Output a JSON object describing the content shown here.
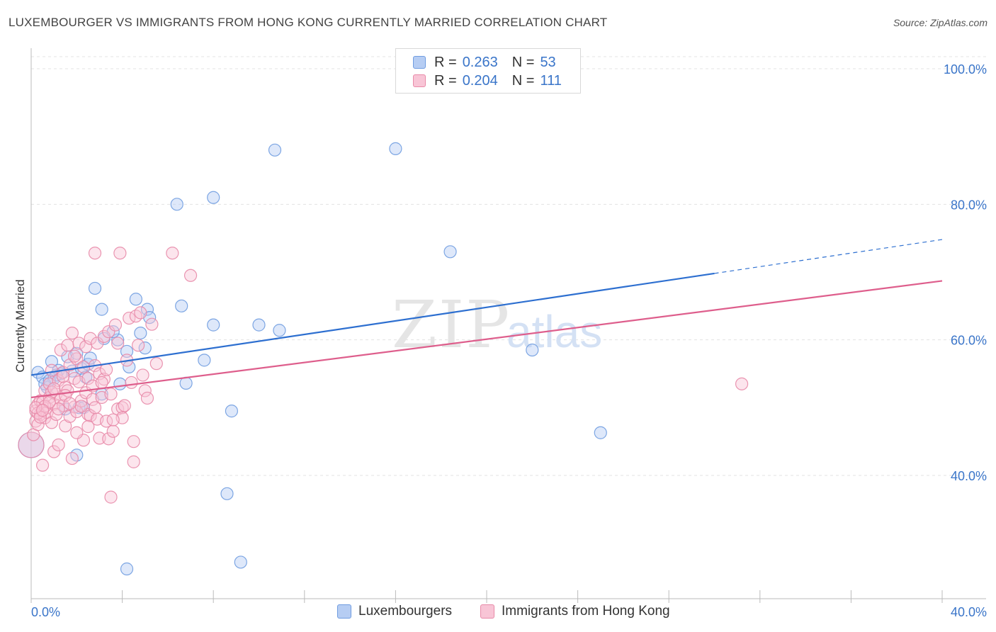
{
  "title": "LUXEMBOURGER VS IMMIGRANTS FROM HONG KONG CURRENTLY MARRIED CORRELATION CHART",
  "source": "Source: ZipAtlas.com",
  "watermark": {
    "zip": "ZIP",
    "atlas": "atlas"
  },
  "legend_top": [
    {
      "r_label": "R =",
      "r_value": "0.263",
      "n_label": "N =",
      "n_value": "53",
      "color": "#6f9ce0"
    },
    {
      "r_label": "R =",
      "r_value": "0.204",
      "n_label": "N =",
      "n_value": "111",
      "color": "#e88aa8"
    }
  ],
  "legend_bottom": [
    "Luxembourgers",
    "Immigrants from Hong Kong"
  ],
  "chart_data": {
    "type": "scatter",
    "title": "LUXEMBOURGER VS IMMIGRANTS FROM HONG KONG CURRENTLY MARRIED CORRELATION CHART",
    "xlabel": "",
    "ylabel": "Currently Married",
    "xlim": [
      0,
      40
    ],
    "ylim": [
      20,
      100
    ],
    "x_tick_labels": [
      "0.0%",
      "40.0%"
    ],
    "y_ticks": [
      40,
      60,
      80,
      100
    ],
    "y_tick_labels": [
      "40.0%",
      "60.0%",
      "80.0%",
      "100.0%"
    ],
    "grid": true,
    "legend_position": "top-center",
    "series": [
      {
        "name": "Luxembourgers",
        "color": "#6f9ce0",
        "fill": "#b6cdf3",
        "trend": {
          "x0": 0,
          "y0": 54.8,
          "x1": 30,
          "y1": 69.8,
          "dashed_to_x": 40,
          "dashed_to_y": 74.8,
          "color": "#2d6fd0"
        },
        "points": [
          [
            0.0,
            44.5
          ],
          [
            0.3,
            55.2
          ],
          [
            0.5,
            54.5
          ],
          [
            0.7,
            53.0
          ],
          [
            0.9,
            56.8
          ],
          [
            1.0,
            54.3
          ],
          [
            1.2,
            55.5
          ],
          [
            1.3,
            55.0
          ],
          [
            1.5,
            49.8
          ],
          [
            1.6,
            57.5
          ],
          [
            1.8,
            55.4
          ],
          [
            2.0,
            58.0
          ],
          [
            2.1,
            50.0
          ],
          [
            2.2,
            55.8
          ],
          [
            2.4,
            54.5
          ],
          [
            2.5,
            56.4
          ],
          [
            2.6,
            57.3
          ],
          [
            2.8,
            67.6
          ],
          [
            3.1,
            64.5
          ],
          [
            3.2,
            60.2
          ],
          [
            3.1,
            52.0
          ],
          [
            3.8,
            60.0
          ],
          [
            3.9,
            53.5
          ],
          [
            4.2,
            58.3
          ],
          [
            4.3,
            56.0
          ],
          [
            4.6,
            66.0
          ],
          [
            4.8,
            61.0
          ],
          [
            5.0,
            58.8
          ],
          [
            5.1,
            64.5
          ],
          [
            5.2,
            63.3
          ],
          [
            6.4,
            80.0
          ],
          [
            6.6,
            65.0
          ],
          [
            6.8,
            53.6
          ],
          [
            7.6,
            57.0
          ],
          [
            8.0,
            62.2
          ],
          [
            8.0,
            81.0
          ],
          [
            8.6,
            37.3
          ],
          [
            8.8,
            49.5
          ],
          [
            9.2,
            27.2
          ],
          [
            10.0,
            62.2
          ],
          [
            10.7,
            88.0
          ],
          [
            10.9,
            61.4
          ],
          [
            16.0,
            88.2
          ],
          [
            18.4,
            73.0
          ],
          [
            22.0,
            58.5
          ],
          [
            25.0,
            46.3
          ],
          [
            4.2,
            26.2
          ],
          [
            2.3,
            50.0
          ],
          [
            1.1,
            54.8
          ],
          [
            0.6,
            53.5
          ],
          [
            2.0,
            43.0
          ],
          [
            0.8,
            54.0
          ],
          [
            3.6,
            61.2
          ]
        ]
      },
      {
        "name": "Immigrants from Hong Kong",
        "color": "#e88aa8",
        "fill": "#f8c5d6",
        "trend": {
          "x0": 0,
          "y0": 51.5,
          "x1": 40,
          "y1": 68.7,
          "color": "#de5e8c"
        },
        "points": [
          [
            0.0,
            44.5
          ],
          [
            0.1,
            46.0
          ],
          [
            0.2,
            48.0
          ],
          [
            0.2,
            49.5
          ],
          [
            0.3,
            50.5
          ],
          [
            0.3,
            47.5
          ],
          [
            0.4,
            51.0
          ],
          [
            0.4,
            49.0
          ],
          [
            0.5,
            50.8
          ],
          [
            0.5,
            41.5
          ],
          [
            0.6,
            48.5
          ],
          [
            0.6,
            52.5
          ],
          [
            0.7,
            50.0
          ],
          [
            0.7,
            49.3
          ],
          [
            0.8,
            51.5
          ],
          [
            0.8,
            53.5
          ],
          [
            0.9,
            47.8
          ],
          [
            0.9,
            55.5
          ],
          [
            1.0,
            50.5
          ],
          [
            1.0,
            43.5
          ],
          [
            1.1,
            52.0
          ],
          [
            1.1,
            49.0
          ],
          [
            1.2,
            54.0
          ],
          [
            1.2,
            44.5
          ],
          [
            1.3,
            51.2
          ],
          [
            1.3,
            58.5
          ],
          [
            1.4,
            55.2
          ],
          [
            1.4,
            50.3
          ],
          [
            1.5,
            53.0
          ],
          [
            1.5,
            47.3
          ],
          [
            1.6,
            59.2
          ],
          [
            1.6,
            52.5
          ],
          [
            1.7,
            56.3
          ],
          [
            1.7,
            48.7
          ],
          [
            1.8,
            61.0
          ],
          [
            1.8,
            42.5
          ],
          [
            1.9,
            54.3
          ],
          [
            1.9,
            50.1
          ],
          [
            2.0,
            57.2
          ],
          [
            2.0,
            49.4
          ],
          [
            2.1,
            53.8
          ],
          [
            2.1,
            59.5
          ],
          [
            2.2,
            51.0
          ],
          [
            2.3,
            45.2
          ],
          [
            2.3,
            56.0
          ],
          [
            2.4,
            59.0
          ],
          [
            2.4,
            52.2
          ],
          [
            2.5,
            49.0
          ],
          [
            2.5,
            54.3
          ],
          [
            2.6,
            60.2
          ],
          [
            2.6,
            48.8
          ],
          [
            2.7,
            53.2
          ],
          [
            2.7,
            51.2
          ],
          [
            2.8,
            72.8
          ],
          [
            2.8,
            56.2
          ],
          [
            2.9,
            59.5
          ],
          [
            2.9,
            48.3
          ],
          [
            3.0,
            55.0
          ],
          [
            3.0,
            45.5
          ],
          [
            3.1,
            51.5
          ],
          [
            3.2,
            54.2
          ],
          [
            3.2,
            60.5
          ],
          [
            3.3,
            48.0
          ],
          [
            3.4,
            61.2
          ],
          [
            3.4,
            45.4
          ],
          [
            3.5,
            52.0
          ],
          [
            3.5,
            36.8
          ],
          [
            3.6,
            46.5
          ],
          [
            3.7,
            62.2
          ],
          [
            3.8,
            59.5
          ],
          [
            3.8,
            49.8
          ],
          [
            3.9,
            72.8
          ],
          [
            4.0,
            50.0
          ],
          [
            4.0,
            48.5
          ],
          [
            4.1,
            50.3
          ],
          [
            4.2,
            57.0
          ],
          [
            4.3,
            63.2
          ],
          [
            4.4,
            53.7
          ],
          [
            4.5,
            45.0
          ],
          [
            4.5,
            42.0
          ],
          [
            4.6,
            63.5
          ],
          [
            4.7,
            59.2
          ],
          [
            4.8,
            64.0
          ],
          [
            4.9,
            54.8
          ],
          [
            5.0,
            52.5
          ],
          [
            5.1,
            51.4
          ],
          [
            5.3,
            62.3
          ],
          [
            5.5,
            56.5
          ],
          [
            6.2,
            72.8
          ],
          [
            7.0,
            69.5
          ],
          [
            0.3,
            49.2
          ],
          [
            0.6,
            50.2
          ],
          [
            0.9,
            52.3
          ],
          [
            1.2,
            49.8
          ],
          [
            1.5,
            51.8
          ],
          [
            1.9,
            57.6
          ],
          [
            2.2,
            50.2
          ],
          [
            2.5,
            47.2
          ],
          [
            2.8,
            50.0
          ],
          [
            3.1,
            53.7
          ],
          [
            3.3,
            55.6
          ],
          [
            3.6,
            48.2
          ],
          [
            0.4,
            48.6
          ],
          [
            0.8,
            50.8
          ],
          [
            1.0,
            52.8
          ],
          [
            1.4,
            54.6
          ],
          [
            1.7,
            50.6
          ],
          [
            2.0,
            46.3
          ],
          [
            31.2,
            53.5
          ],
          [
            0.2,
            50.0
          ],
          [
            0.5,
            49.6
          ]
        ]
      }
    ]
  }
}
